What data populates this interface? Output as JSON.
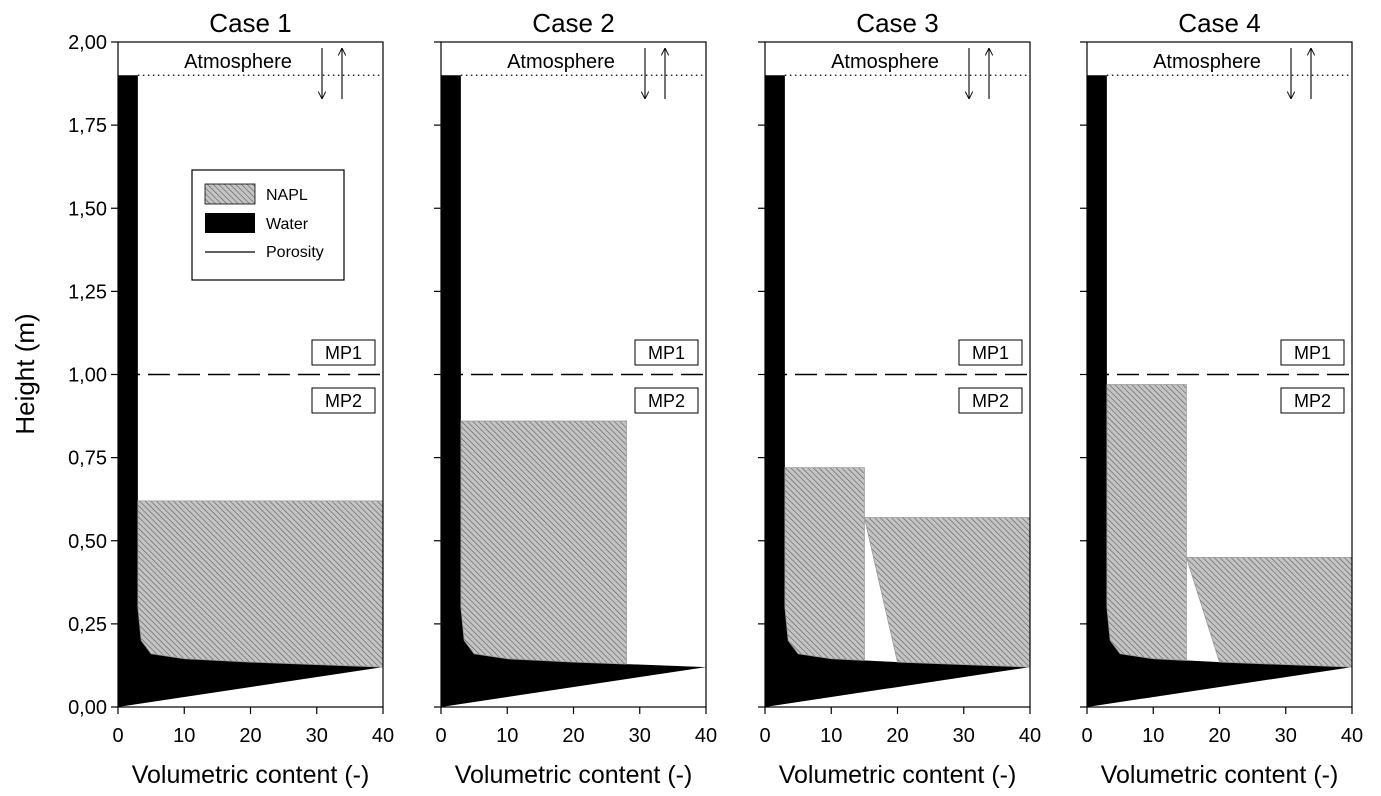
{
  "chart_data": [
    {
      "type": "area",
      "title": "Case 1",
      "xlabel": "Volumetric content (-)",
      "ylabel": "Height (m)",
      "xlim": [
        0,
        40
      ],
      "ylim": [
        0,
        2.0
      ],
      "x_ticks": [
        "0",
        "10",
        "20",
        "30",
        "40"
      ],
      "y_ticks": [
        "0,00",
        "0,25",
        "0,50",
        "0,75",
        "1,00",
        "1,25",
        "1,50",
        "1,75",
        "2,00"
      ],
      "water_column_top": 1.9,
      "water_profile": [
        [
          40,
          0.12
        ],
        [
          20,
          0.135
        ],
        [
          10,
          0.145
        ],
        [
          5,
          0.16
        ],
        [
          3.5,
          0.2
        ],
        [
          3,
          0.3
        ],
        [
          3,
          1.9
        ]
      ],
      "napl_blocks": [
        {
          "x_from": 3,
          "x_to": 40,
          "top": 0.62
        }
      ],
      "layer_boundary": 1.0,
      "water_table": 1.9,
      "annotations": {
        "atmosphere": "Atmosphere",
        "upper_layer": "MP1",
        "lower_layer": "MP2"
      },
      "legend": {
        "entries": [
          "NAPL",
          "Water",
          "Porosity"
        ]
      }
    },
    {
      "type": "area",
      "title": "Case 2",
      "xlabel": "Volumetric content (-)",
      "xlim": [
        0,
        40
      ],
      "ylim": [
        0,
        2.0
      ],
      "x_ticks": [
        "0",
        "10",
        "20",
        "30",
        "40"
      ],
      "water_column_top": 1.9,
      "water_profile": [
        [
          40,
          0.12
        ],
        [
          20,
          0.135
        ],
        [
          10,
          0.145
        ],
        [
          5,
          0.16
        ],
        [
          3.5,
          0.2
        ],
        [
          3,
          0.3
        ],
        [
          3,
          1.9
        ]
      ],
      "napl_blocks": [
        {
          "x_from": 3,
          "x_to": 28,
          "top": 0.86
        }
      ],
      "layer_boundary": 1.0,
      "water_table": 1.9,
      "annotations": {
        "atmosphere": "Atmosphere",
        "upper_layer": "MP1",
        "lower_layer": "MP2"
      }
    },
    {
      "type": "area",
      "title": "Case 3",
      "xlabel": "Volumetric content (-)",
      "xlim": [
        0,
        40
      ],
      "ylim": [
        0,
        2.0
      ],
      "x_ticks": [
        "0",
        "10",
        "20",
        "30",
        "40"
      ],
      "water_column_top": 1.9,
      "water_profile": [
        [
          40,
          0.12
        ],
        [
          20,
          0.135
        ],
        [
          10,
          0.145
        ],
        [
          5,
          0.16
        ],
        [
          3.5,
          0.2
        ],
        [
          3,
          0.3
        ],
        [
          3,
          1.9
        ]
      ],
      "napl_blocks": [
        {
          "x_from": 3,
          "x_to": 15,
          "top": 0.72
        },
        {
          "x_from": 15,
          "x_to": 40,
          "top": 0.57
        }
      ],
      "layer_boundary": 1.0,
      "water_table": 1.9,
      "annotations": {
        "atmosphere": "Atmosphere",
        "upper_layer": "MP1",
        "lower_layer": "MP2"
      }
    },
    {
      "type": "area",
      "title": "Case 4",
      "xlabel": "Volumetric content (-)",
      "xlim": [
        0,
        40
      ],
      "ylim": [
        0,
        2.0
      ],
      "x_ticks": [
        "0",
        "10",
        "20",
        "30",
        "40"
      ],
      "water_column_top": 1.9,
      "water_profile": [
        [
          40,
          0.12
        ],
        [
          20,
          0.135
        ],
        [
          10,
          0.145
        ],
        [
          5,
          0.16
        ],
        [
          3.5,
          0.2
        ],
        [
          3,
          0.3
        ],
        [
          3,
          1.9
        ]
      ],
      "napl_blocks": [
        {
          "x_from": 3,
          "x_to": 15,
          "top": 0.97
        },
        {
          "x_from": 15,
          "x_to": 40,
          "top": 0.45
        }
      ],
      "layer_boundary": 1.0,
      "water_table": 1.9,
      "annotations": {
        "atmosphere": "Atmosphere",
        "upper_layer": "MP1",
        "lower_layer": "MP2"
      }
    }
  ],
  "colors": {
    "napl": "#c4c4c4",
    "napl_hatch": "#5a5a5a",
    "water": "#000000",
    "background": "#ffffff"
  }
}
